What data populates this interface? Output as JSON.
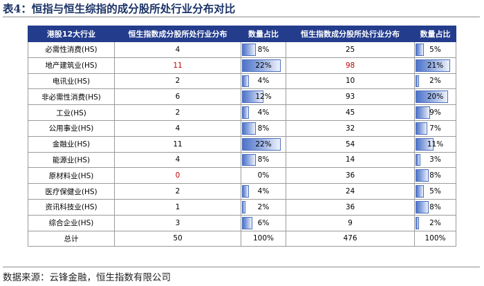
{
  "caption": "表4：恒指与恒生综指的成分股所处行业分布对比",
  "table": {
    "headers": [
      "港股12大行业",
      "恒生指数成分股所处行业分布",
      "数量占比",
      "恒生指数成分股所处行业分布",
      "数量占比"
    ],
    "rows": [
      {
        "industry": "必需性消费(HS)",
        "hsi_count": "4",
        "hsi_pct": "8%",
        "hsi_pct_value": 8,
        "hsci_count": "25",
        "hsci_pct": "5%",
        "hsci_pct_value": 5,
        "red": false
      },
      {
        "industry": "地产建筑业(HS)",
        "hsi_count": "11",
        "hsi_pct": "22%",
        "hsi_pct_value": 22,
        "hsci_count": "98",
        "hsci_pct": "21%",
        "hsci_pct_value": 21,
        "red": true
      },
      {
        "industry": "电讯业(HS)",
        "hsi_count": "2",
        "hsi_pct": "4%",
        "hsi_pct_value": 4,
        "hsci_count": "10",
        "hsci_pct": "2%",
        "hsci_pct_value": 2,
        "red": false
      },
      {
        "industry": "非必需性消费(HS)",
        "hsi_count": "6",
        "hsi_pct": "12%",
        "hsi_pct_value": 12,
        "hsci_count": "93",
        "hsci_pct": "20%",
        "hsci_pct_value": 20,
        "red": false
      },
      {
        "industry": "工业(HS)",
        "hsi_count": "2",
        "hsi_pct": "4%",
        "hsi_pct_value": 4,
        "hsci_count": "45",
        "hsci_pct": "9%",
        "hsci_pct_value": 9,
        "red": false
      },
      {
        "industry": "公用事业(HS)",
        "hsi_count": "4",
        "hsi_pct": "8%",
        "hsi_pct_value": 8,
        "hsci_count": "32",
        "hsci_pct": "7%",
        "hsci_pct_value": 7,
        "red": false
      },
      {
        "industry": "金融业(HS)",
        "hsi_count": "11",
        "hsi_pct": "22%",
        "hsi_pct_value": 22,
        "hsci_count": "54",
        "hsci_pct": "11%",
        "hsci_pct_value": 11,
        "red": false
      },
      {
        "industry": "能源业(HS)",
        "hsi_count": "4",
        "hsi_pct": "8%",
        "hsi_pct_value": 8,
        "hsci_count": "14",
        "hsci_pct": "3%",
        "hsci_pct_value": 3,
        "red": false
      },
      {
        "industry": "原材料业(HS)",
        "hsi_count": "0",
        "hsi_pct": "0%",
        "hsi_pct_value": 0,
        "hsci_count": "36",
        "hsci_pct": "8%",
        "hsci_pct_value": 8,
        "red": false,
        "hsi_count_red": true
      },
      {
        "industry": "医疗保健业(HS)",
        "hsi_count": "2",
        "hsi_pct": "4%",
        "hsi_pct_value": 4,
        "hsci_count": "24",
        "hsci_pct": "5%",
        "hsci_pct_value": 5,
        "red": false
      },
      {
        "industry": "资讯科技业(HS)",
        "hsi_count": "1",
        "hsi_pct": "2%",
        "hsi_pct_value": 2,
        "hsci_count": "36",
        "hsci_pct": "8%",
        "hsci_pct_value": 8,
        "red": false
      },
      {
        "industry": "综合企业(HS)",
        "hsi_count": "3",
        "hsi_pct": "6%",
        "hsi_pct_value": 6,
        "hsci_count": "9",
        "hsci_pct": "2%",
        "hsci_pct_value": 2,
        "red": false
      }
    ],
    "total": {
      "label": "总计",
      "hsi_count": "50",
      "hsi_pct": "100%",
      "hsci_count": "476",
      "hsci_pct": "100%"
    }
  },
  "colors": {
    "header_bg": "#233c8c",
    "highlight_red": "#c00000",
    "bar_blue": "#4d72c8"
  },
  "source": "数据来源：云锋金融，恒生指数有限公司"
}
